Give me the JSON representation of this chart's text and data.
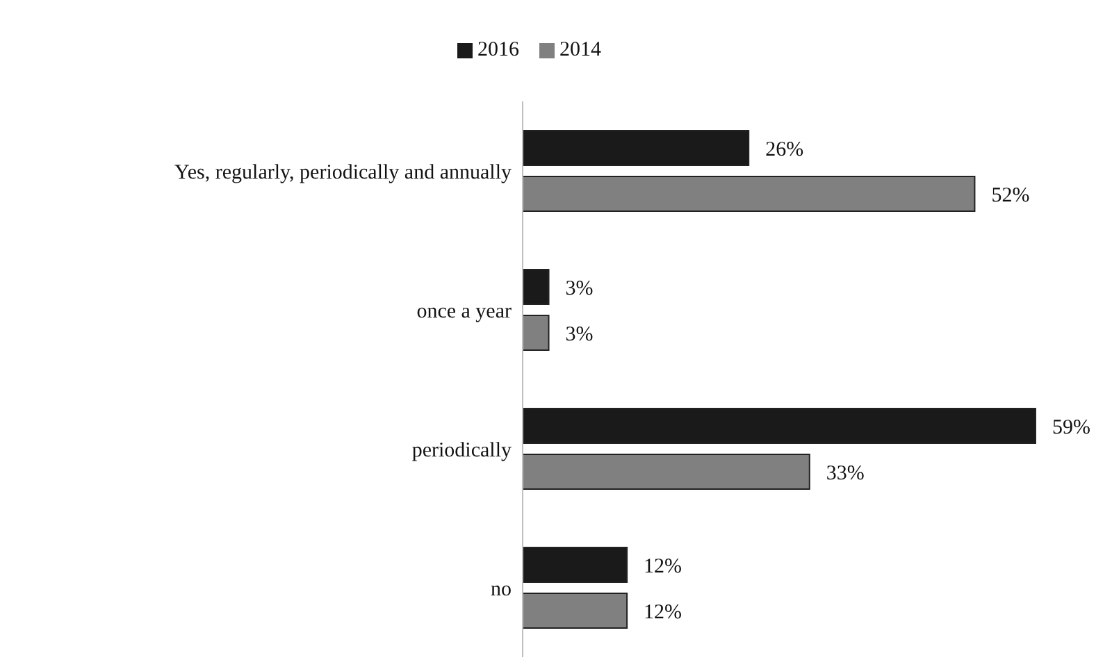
{
  "chart_data": {
    "type": "bar",
    "orientation": "horizontal",
    "categories": [
      "Yes, regularly, periodically and annually",
      "once a year",
      "periodically",
      "no"
    ],
    "series": [
      {
        "name": "2016",
        "color": "#1a1a1a",
        "values": [
          26,
          3,
          59,
          12
        ],
        "value_labels": [
          "26%",
          "3%",
          "59%",
          "12%"
        ]
      },
      {
        "name": "2014",
        "color": "#808080",
        "values": [
          52,
          3,
          33,
          12
        ],
        "value_labels": [
          "52%",
          "3%",
          "33%",
          "12%"
        ]
      }
    ],
    "legend": "top"
  }
}
